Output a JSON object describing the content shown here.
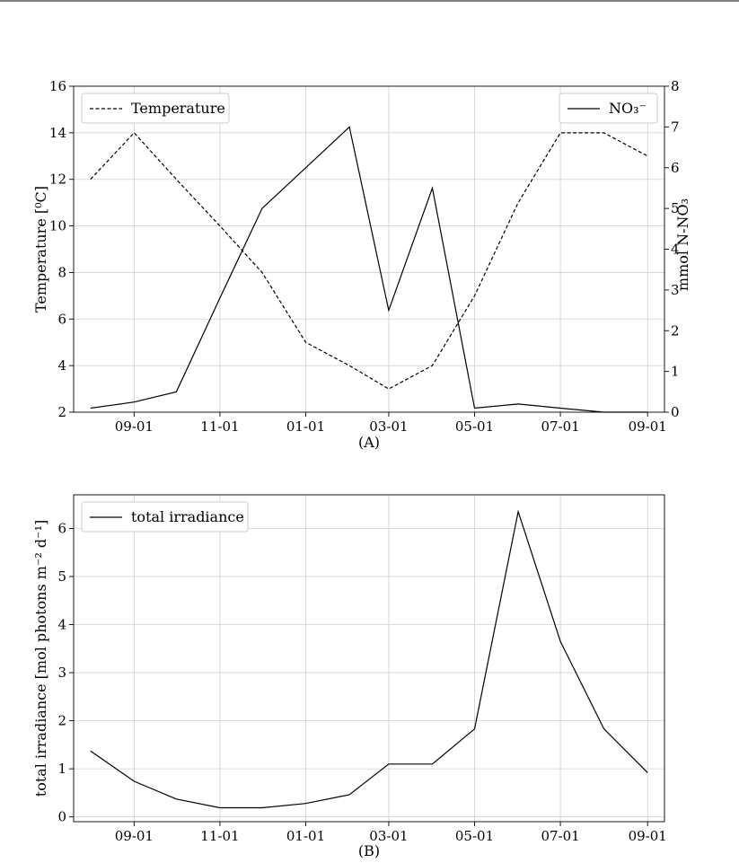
{
  "chart_data": [
    {
      "type": "line",
      "caption": "(A)",
      "x": [
        "2020-08-01",
        "2020-09-01",
        "2020-10-01",
        "2020-11-01",
        "2020-12-01",
        "2021-01-01",
        "2021-02-01",
        "2021-03-01",
        "2021-04-01",
        "2021-05-01",
        "2021-06-01",
        "2021-07-01",
        "2021-08-01",
        "2021-09-01"
      ],
      "xticks": [
        "09-01",
        "11-01",
        "01-01",
        "03-01",
        "05-01",
        "07-01",
        "09-01"
      ],
      "xtick_dates": [
        "2020-09-01",
        "2020-11-01",
        "2021-01-01",
        "2021-03-01",
        "2021-05-01",
        "2021-07-01",
        "2021-09-01"
      ],
      "xlim": [
        "2020-07-20",
        "2021-09-13"
      ],
      "grid": true,
      "ylabel": "Temperature [⁰C]",
      "ylim": [
        2,
        16
      ],
      "yticks": [
        2,
        4,
        6,
        8,
        10,
        12,
        14,
        16
      ],
      "y2label": "mmol N-NO₃",
      "y2lim": [
        0,
        8
      ],
      "y2ticks": [
        0,
        1,
        2,
        3,
        4,
        5,
        6,
        7,
        8
      ],
      "series": [
        {
          "name": "Temperature",
          "axis": "left",
          "style": "dashed",
          "legend": "top-left",
          "values": [
            12,
            14,
            12,
            10,
            8,
            5,
            4,
            3,
            4,
            7,
            11,
            14,
            14,
            13
          ]
        },
        {
          "name": "NO₃⁻",
          "axis": "right",
          "style": "solid",
          "legend": "top-right",
          "values": [
            0.1,
            0.25,
            0.5,
            2.8,
            5.0,
            6.0,
            7.0,
            2.5,
            5.5,
            0.1,
            0.2,
            0.1,
            0.0,
            0.0
          ]
        }
      ]
    },
    {
      "type": "line",
      "caption": "(B)",
      "x": [
        "2020-08-01",
        "2020-09-01",
        "2020-10-01",
        "2020-11-01",
        "2020-12-01",
        "2021-01-01",
        "2021-02-01",
        "2021-03-01",
        "2021-04-01",
        "2021-05-01",
        "2021-06-01",
        "2021-07-01",
        "2021-08-01",
        "2021-09-01"
      ],
      "xticks": [
        "09-01",
        "11-01",
        "01-01",
        "03-01",
        "05-01",
        "07-01",
        "09-01"
      ],
      "xtick_dates": [
        "2020-09-01",
        "2020-11-01",
        "2021-01-01",
        "2021-03-01",
        "2021-05-01",
        "2021-07-01",
        "2021-09-01"
      ],
      "xlim": [
        "2020-07-20",
        "2021-09-13"
      ],
      "grid": true,
      "ylabel": "total irradiance [mol photons m⁻² d⁻¹]",
      "ylim": [
        -0.1,
        6.7
      ],
      "yticks": [
        0,
        1,
        2,
        3,
        4,
        5,
        6
      ],
      "series": [
        {
          "name": "total irradiance",
          "axis": "left",
          "style": "solid",
          "legend": "top-left",
          "values": [
            1.37,
            0.74,
            0.37,
            0.19,
            0.19,
            0.28,
            0.46,
            1.1,
            1.1,
            1.83,
            6.35,
            3.65,
            1.83,
            0.92
          ]
        }
      ]
    }
  ]
}
